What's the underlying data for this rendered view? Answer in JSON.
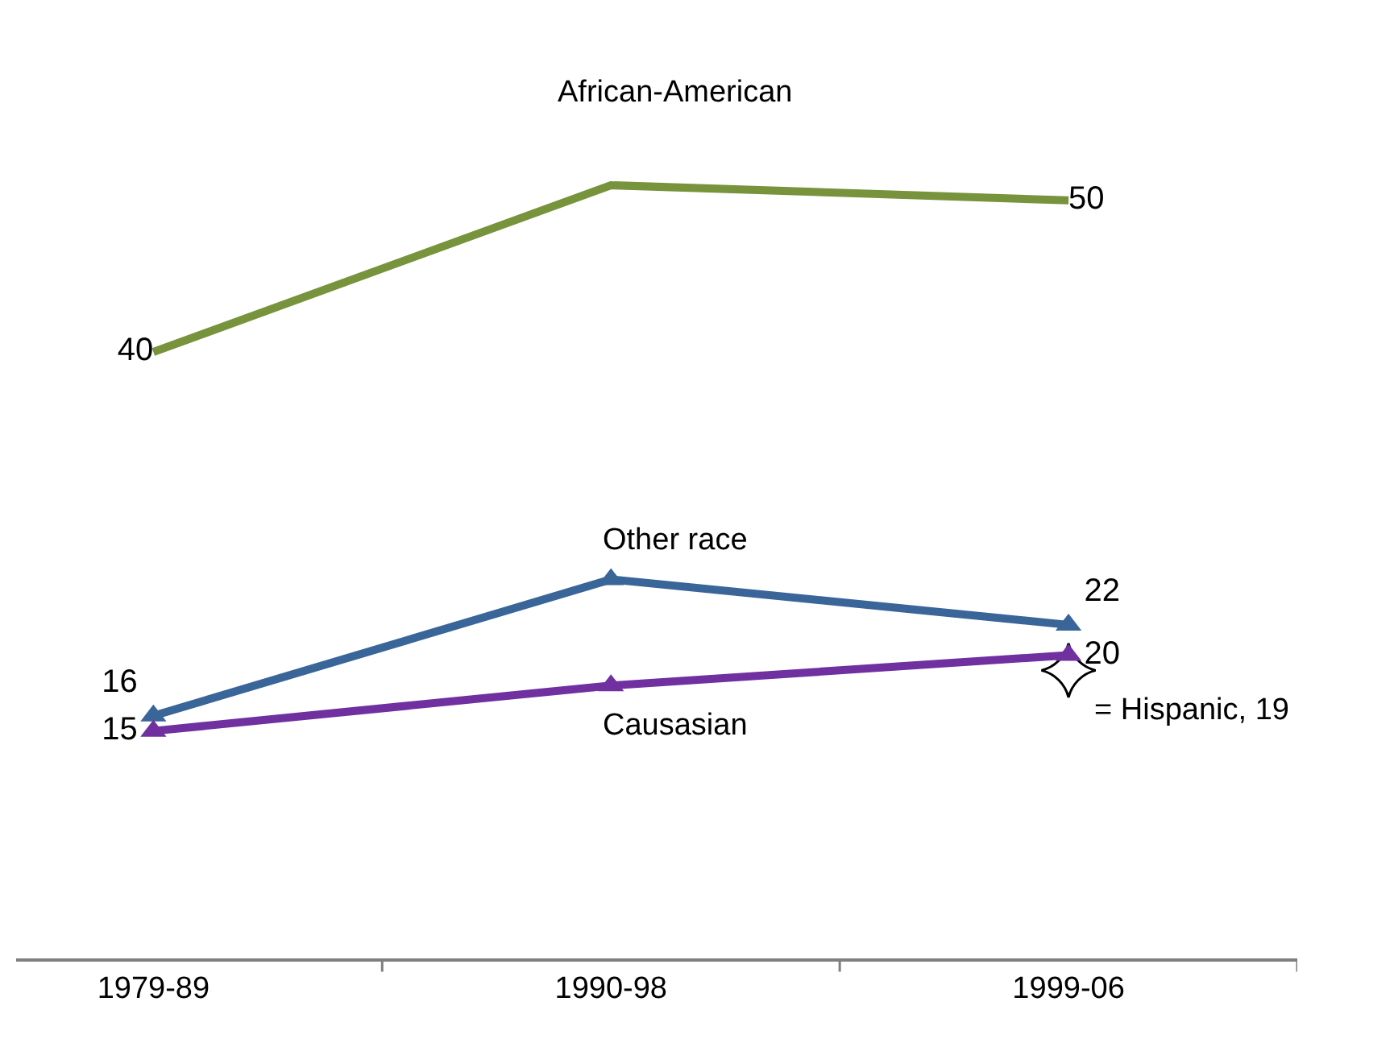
{
  "chart_data": {
    "type": "line",
    "categories": [
      "1979-89",
      "1990-98",
      "1999-06"
    ],
    "line_style": "solid",
    "series": [
      {
        "name": "African-American",
        "color": "#77933c",
        "marker": "none",
        "values": [
          40,
          51,
          50
        ],
        "value_labels": [
          "40",
          null,
          "50"
        ]
      },
      {
        "name": "Other race",
        "color": "#3a6598",
        "marker": "triangle",
        "values": [
          16,
          25,
          22
        ],
        "value_labels": [
          "16",
          null,
          "22"
        ]
      },
      {
        "name": "Causasian",
        "color": "#7030a0",
        "marker": "triangle",
        "values": [
          15,
          18,
          20
        ],
        "value_labels": [
          "15",
          null,
          "20"
        ]
      },
      {
        "type": "scatter",
        "color": "#ffffff",
        "marker": "star",
        "values": [
          null,
          null,
          19
        ],
        "value_labels": [
          null,
          null,
          "= Hispanic, 19"
        ]
      }
    ]
  }
}
